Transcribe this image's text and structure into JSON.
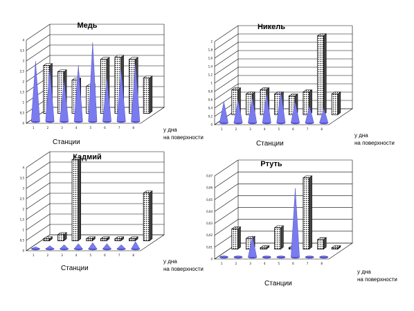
{
  "chart_data": [
    {
      "type": "bar",
      "title": "Медь",
      "xlabel": "Станции",
      "depth_labels": [
        "у дна",
        "на поверхности"
      ],
      "categories": [
        "1",
        "2",
        "3",
        "4",
        "5",
        "6",
        "7",
        "8"
      ],
      "ytick_labels": [
        "0",
        "0,5",
        "1",
        "1,5",
        "2",
        "2,5",
        "3",
        "3,5",
        "4"
      ],
      "ylim": [
        0,
        4
      ],
      "series": [
        {
          "name": "у дна",
          "shape": "cone",
          "values": [
            2.9,
            2.6,
            2.0,
            2.7,
            3.8,
            2.1,
            2.5,
            2.8
          ]
        },
        {
          "name": "на поверхности",
          "shape": "box",
          "values": [
            2.3,
            2.0,
            1.6,
            1.3,
            2.6,
            2.7,
            2.6,
            1.7
          ]
        }
      ]
    },
    {
      "type": "bar",
      "title": "Никель",
      "xlabel": "Станции",
      "depth_labels": [
        "у дна",
        "на поверхности"
      ],
      "categories": [
        "1",
        "2",
        "3",
        "4",
        "5",
        "6",
        "7",
        "8"
      ],
      "ytick_labels": [
        "0",
        "0,2",
        "0,4",
        "0,6",
        "0,8",
        "1",
        "1,2",
        "1,4",
        "1,6",
        "1,8",
        "2"
      ],
      "ylim": [
        0,
        2
      ],
      "series": [
        {
          "name": "у дна",
          "shape": "cone",
          "values": [
            0.5,
            0.55,
            0.6,
            0.7,
            0.75,
            0.5,
            0.4,
            0.35
          ]
        },
        {
          "name": "на поверхности",
          "shape": "box",
          "values": [
            0.6,
            0.5,
            0.6,
            0.5,
            0.45,
            0.55,
            1.9,
            0.5
          ]
        }
      ]
    },
    {
      "type": "bar",
      "title": "Кадмий",
      "xlabel": "Станции",
      "depth_labels": [
        "у дна",
        "на поверхности"
      ],
      "categories": [
        "1",
        "2",
        "3",
        "4",
        "5",
        "6",
        "7",
        "8"
      ],
      "ytick_labels": [
        "0",
        "0,5",
        "1",
        "1,5",
        "2",
        "2,5",
        "3",
        "3,5",
        "4"
      ],
      "ylim": [
        0,
        4
      ],
      "series": [
        {
          "name": "у дна",
          "shape": "cone",
          "values": [
            0.1,
            0.15,
            0.2,
            0.25,
            0.3,
            0.25,
            0.2,
            0.35
          ]
        },
        {
          "name": "на поверхности",
          "shape": "box",
          "values": [
            0.1,
            0.3,
            3.9,
            0.1,
            0.1,
            0.1,
            0.1,
            2.3
          ]
        }
      ]
    },
    {
      "type": "bar",
      "title": "Ртуть",
      "xlabel": "Станции",
      "depth_labels": [
        "у дна",
        "на поверхности"
      ],
      "categories": [
        "1",
        "2",
        "3",
        "4",
        "5",
        "6",
        "7",
        "8"
      ],
      "ytick_labels": [
        "0",
        "0,01",
        "0,02",
        "0,03",
        "0,04",
        "0,05",
        "0,06",
        "0,07"
      ],
      "ylim": [
        0,
        0.07
      ],
      "series": [
        {
          "name": "у дна",
          "shape": "cone",
          "values": [
            0.001,
            0.001,
            0.018,
            0.001,
            0.001,
            0.058,
            0.001,
            0.001
          ]
        },
        {
          "name": "на поверхности",
          "shape": "box",
          "values": [
            0.017,
            0.009,
            0.001,
            0.018,
            0.001,
            0.06,
            0.008,
            0.001
          ]
        }
      ]
    }
  ]
}
